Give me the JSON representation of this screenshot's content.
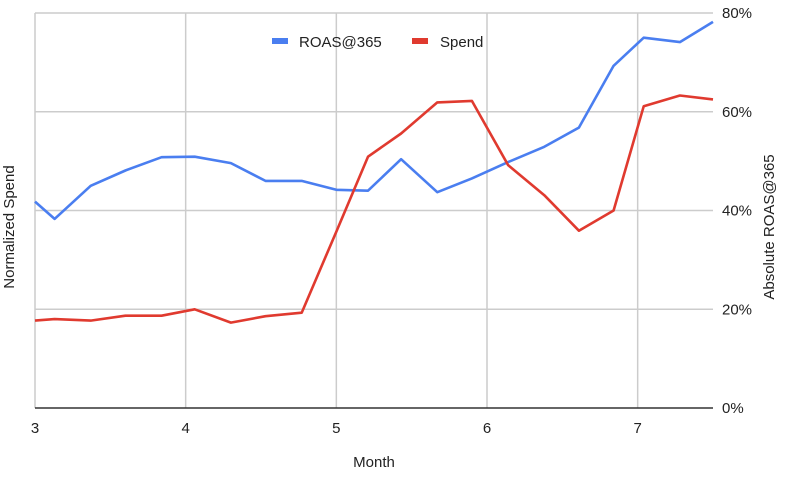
{
  "chart_data": {
    "type": "line",
    "title": "",
    "xlabel": "Month",
    "ylabel_left": "Normalized Spend",
    "ylabel_right": "Absolute ROAS@365",
    "xlim": [
      3,
      7.5
    ],
    "ylim": [
      0,
      80
    ],
    "x_ticks": [
      "3",
      "4",
      "5",
      "6",
      "7"
    ],
    "y_ticks_right": [
      "0%",
      "20%",
      "40%",
      "60%",
      "80%"
    ],
    "grid": true,
    "legend_position": "top-center",
    "x": [
      3.0,
      3.13,
      3.37,
      3.6,
      3.84,
      4.06,
      4.3,
      4.53,
      4.77,
      5.0,
      5.21,
      5.43,
      5.67,
      5.9,
      6.14,
      6.38,
      6.61,
      6.84,
      7.04,
      7.28,
      7.5
    ],
    "series": [
      {
        "name": "ROAS@365",
        "color": "#4a7ef0",
        "values": [
          41.8,
          38.3,
          45.0,
          48.1,
          50.8,
          50.9,
          49.6,
          46.0,
          46.0,
          44.2,
          44.0,
          50.4,
          43.7,
          46.5,
          49.8,
          52.9,
          56.8,
          69.3,
          75.0,
          74.1,
          78.2
        ]
      },
      {
        "name": "Spend",
        "color": "#e03a2f",
        "values": [
          17.7,
          18.0,
          17.7,
          18.7,
          18.7,
          20.0,
          17.3,
          18.6,
          19.3,
          35.7,
          50.9,
          55.6,
          61.9,
          62.2,
          49.2,
          43.1,
          35.9,
          40.0,
          61.1,
          63.3,
          62.5
        ]
      }
    ]
  }
}
